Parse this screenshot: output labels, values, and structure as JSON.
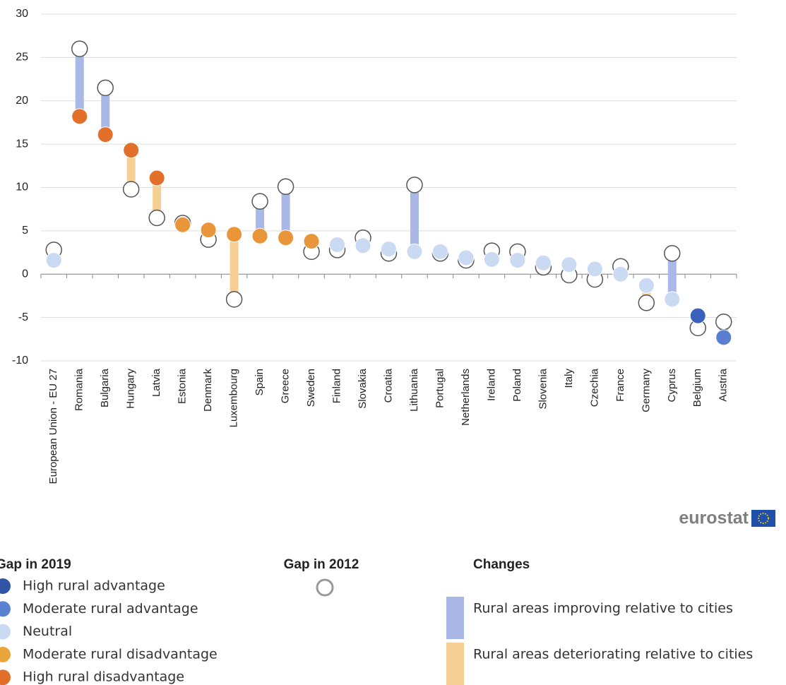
{
  "chart_data": {
    "type": "dumbbell",
    "categories": [
      "European Union - EU 27",
      "Romania",
      "Bulgaria",
      "Hungary",
      "Latvia",
      "Estonia",
      "Denmark",
      "Luxembourg",
      "Spain",
      "Greece",
      "Sweden",
      "Finland",
      "Slovakia",
      "Croatia",
      "Lithuania",
      "Portugal",
      "Netherlands",
      "Ireland",
      "Poland",
      "Slovenia",
      "Italy",
      "Czechia",
      "France",
      "Germany",
      "Cyprus",
      "Belgium",
      "Austria"
    ],
    "series": [
      {
        "name": "Gap in 2019",
        "values": [
          1.6,
          18.2,
          16.1,
          14.3,
          11.1,
          5.7,
          5.1,
          4.6,
          4.4,
          4.2,
          3.8,
          3.4,
          3.3,
          2.9,
          2.6,
          2.6,
          1.9,
          1.7,
          1.6,
          1.3,
          1.1,
          0.6,
          0.0,
          -1.3,
          -2.9,
          -4.8,
          -7.3
        ],
        "colors": [
          "#c9daf2",
          "#e2702b",
          "#e2702b",
          "#e2702b",
          "#e2702b",
          "#e9953a",
          "#e9953a",
          "#e9953a",
          "#e9953a",
          "#e9953a",
          "#e9953a",
          "#c9daf2",
          "#c9daf2",
          "#c9daf2",
          "#c9daf2",
          "#c9daf2",
          "#c9daf2",
          "#c9daf2",
          "#c9daf2",
          "#c9daf2",
          "#c9daf2",
          "#c9daf2",
          "#c9daf2",
          "#c9daf2",
          "#c9daf2",
          "#3a62bd",
          "#5b7fd0"
        ]
      },
      {
        "name": "Gap in 2012",
        "values": [
          2.8,
          26.0,
          21.5,
          9.8,
          6.5,
          5.9,
          4.0,
          -2.9,
          8.4,
          10.1,
          2.6,
          2.8,
          4.2,
          2.4,
          10.3,
          2.4,
          1.6,
          2.7,
          2.6,
          0.8,
          -0.1,
          -0.6,
          0.9,
          -3.3,
          2.4,
          -6.2,
          -5.5
        ],
        "color": "#ffffff",
        "stroke": "#555555"
      }
    ],
    "ylim": [
      -10,
      30
    ],
    "yticks": [
      -10,
      -5,
      0,
      5,
      10,
      15,
      20,
      25,
      30
    ],
    "grid": true,
    "class_legend": [
      {
        "label": "High rural advantage",
        "color": "#2f55a4"
      },
      {
        "label": "Moderate rural advantage",
        "color": "#5b82d1"
      },
      {
        "label": "Neutral",
        "color": "#c9daf2"
      },
      {
        "label": "Moderate rural disadvantage",
        "color": "#e9a43a"
      },
      {
        "label": "High rural disadvantage",
        "color": "#e2702b"
      }
    ],
    "change_legend": {
      "title": "Changes",
      "items": [
        {
          "label": "Rural areas improving relative to cities",
          "color": "#a9b8e6"
        },
        {
          "label": "Rural areas deteriorating relative to cities",
          "color": "#f5cf94"
        }
      ]
    },
    "logo": "eurostat"
  }
}
